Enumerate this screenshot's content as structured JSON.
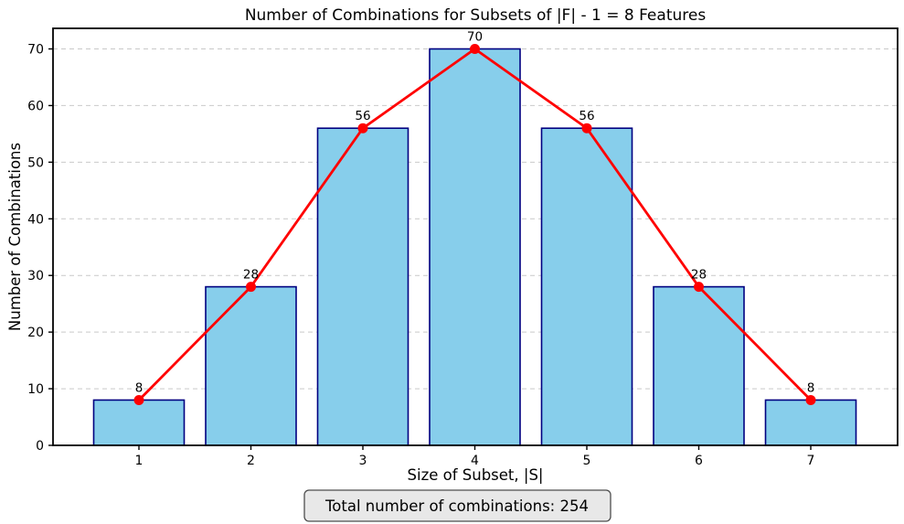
{
  "chart_data": {
    "type": "bar",
    "title": "Number of Combinations for Subsets of |F| - 1 = 8 Features",
    "xlabel": "Size of Subset, |S|",
    "ylabel": "Number of Combinations",
    "categories": [
      "1",
      "2",
      "3",
      "4",
      "5",
      "6",
      "7"
    ],
    "values": [
      8,
      28,
      56,
      70,
      56,
      28,
      8
    ],
    "series": [
      {
        "name": "combinations-bars",
        "type": "bar",
        "values": [
          8,
          28,
          56,
          70,
          56,
          28,
          8
        ]
      },
      {
        "name": "combinations-line",
        "type": "line",
        "values": [
          8,
          28,
          56,
          70,
          56,
          28,
          8
        ]
      }
    ],
    "data_labels": [
      "8",
      "28",
      "56",
      "70",
      "56",
      "28",
      "8"
    ],
    "yticks": [
      0,
      10,
      20,
      30,
      40,
      50,
      60,
      70
    ],
    "ylim": [
      0,
      73.5
    ],
    "grid": "horizontal-dashed",
    "legend": "none",
    "colors": {
      "bar_fill": "#87CEEB",
      "bar_edge": "#000080",
      "line": "#FF0000",
      "marker": "#FF0000",
      "grid": "#c9c9c9",
      "spine": "#000000",
      "text": "#000000",
      "footer_box_fill": "#e8e8e8",
      "footer_box_edge": "#4d4d4d"
    }
  },
  "footer": {
    "total_label": "Total number of combinations: 254"
  }
}
